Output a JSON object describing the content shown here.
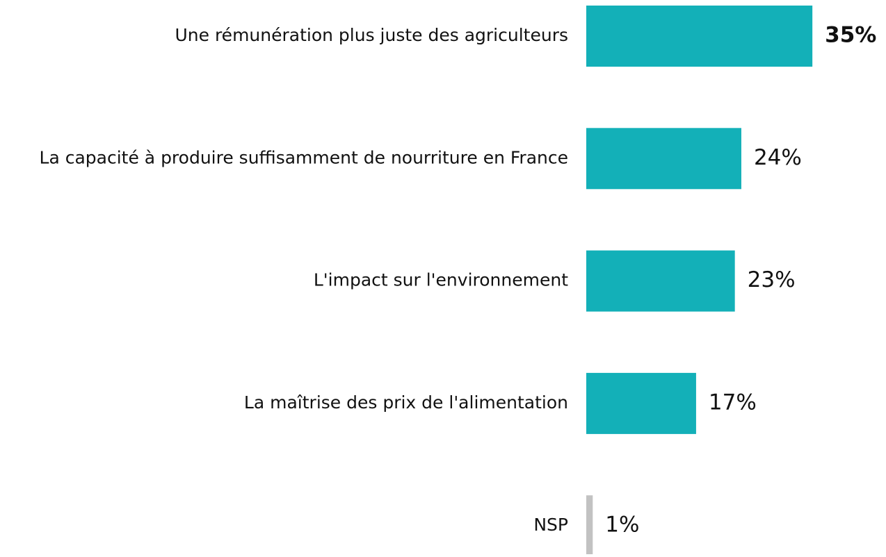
{
  "chart_data": {
    "type": "hbar",
    "categories": [
      "Une rémunération plus juste des agriculteurs",
      "La capacité à produire suffisamment de nourriture en France",
      "L'impact sur l'environnement",
      "La maîtrise des prix de l'alimentation",
      "NSP"
    ],
    "values": [
      35,
      24,
      23,
      17,
      1
    ],
    "value_labels": [
      "35%",
      "24%",
      "23%",
      "17%",
      "1%"
    ],
    "colors": [
      "#13b0b8",
      "#13b0b8",
      "#13b0b8",
      "#13b0b8",
      "#c2c2c2"
    ],
    "bold_labels": [
      true,
      false,
      false,
      false,
      false
    ]
  }
}
